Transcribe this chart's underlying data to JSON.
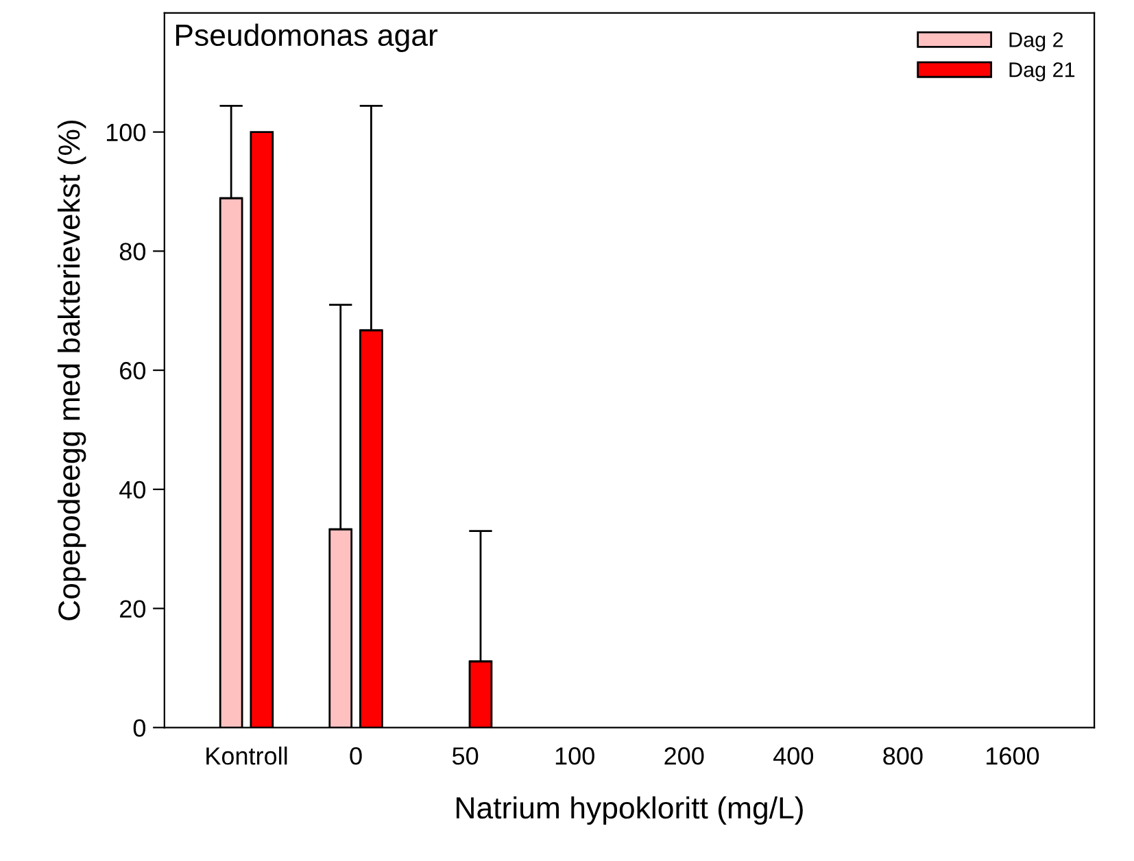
{
  "chart_data": {
    "type": "bar",
    "title": "Pseudomonas agar",
    "xlabel": "Natrium hypokloritt (mg/L)",
    "ylabel": "Copepodeegg med bakterievekst (%)",
    "categories": [
      "Kontroll",
      "0",
      "50",
      "100",
      "200",
      "400",
      "800",
      "1600"
    ],
    "series": [
      {
        "name": "Dag 2",
        "color": "#ffc0c0",
        "values": [
          88.9,
          33.3,
          0,
          0,
          0,
          0,
          0,
          0
        ],
        "errors": [
          [
            88.9,
            104.4
          ],
          [
            33.3,
            71.0
          ],
          null,
          null,
          null,
          null,
          null,
          null
        ]
      },
      {
        "name": "Dag 21",
        "color": "#ff0000",
        "values": [
          100,
          66.7,
          11.1,
          0,
          0,
          0,
          0,
          0
        ],
        "errors": [
          null,
          [
            66.7,
            104.4
          ],
          [
            11.1,
            33.0
          ],
          null,
          null,
          null,
          null,
          null
        ]
      }
    ],
    "ylim": [
      0,
      120
    ],
    "yticks": [
      0,
      20,
      40,
      60,
      80,
      100
    ],
    "grid": false,
    "legend": "top right"
  }
}
